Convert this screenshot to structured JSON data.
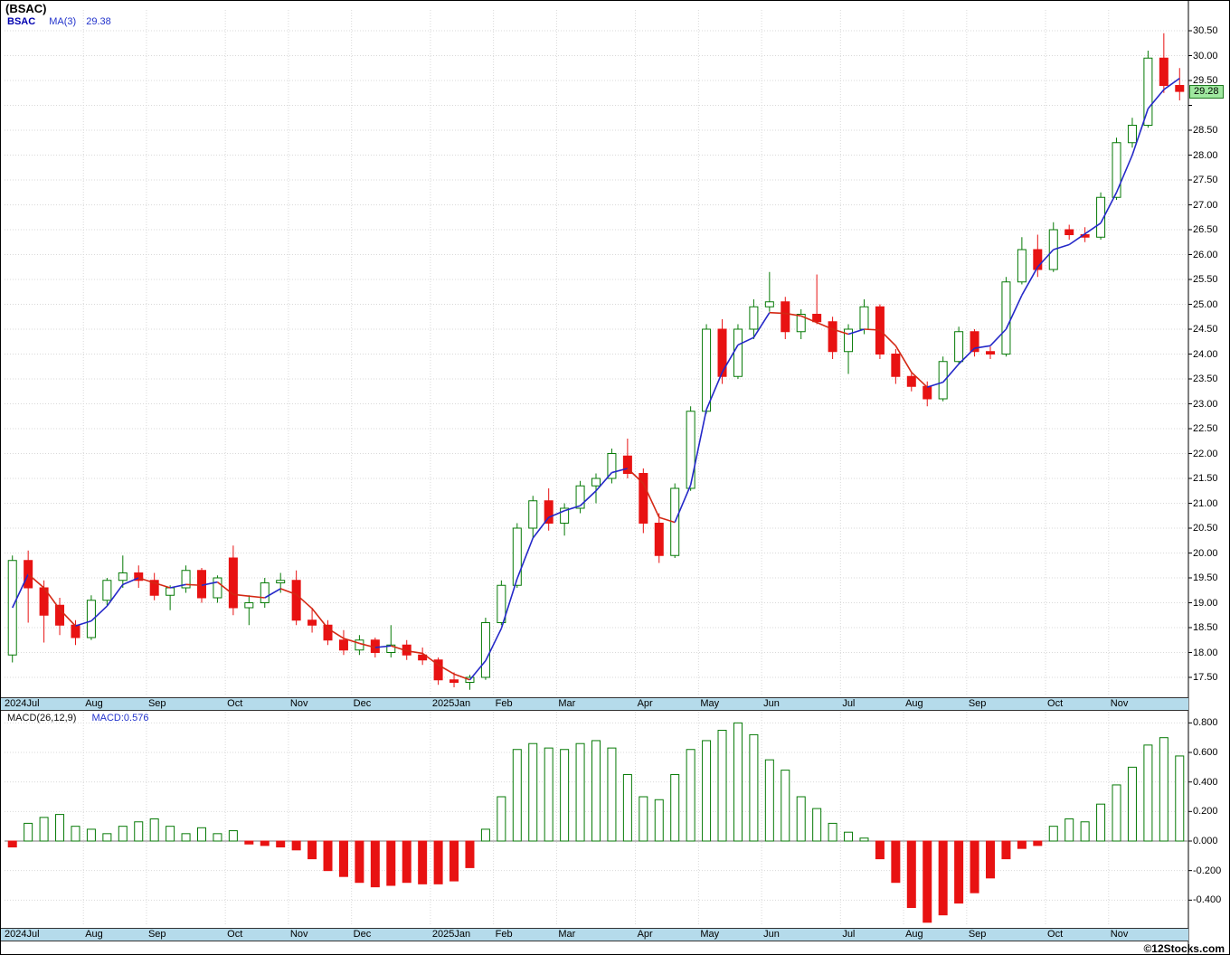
{
  "title": "(BSAC)",
  "legend": {
    "symbol": "BSAC",
    "ma": "MA(3)",
    "ma_value": "29.38"
  },
  "macd_legend": {
    "label": "MACD(26,12,9)",
    "value": "MACD:0.576"
  },
  "price_tag": "29.28",
  "watermark": "©12Stocks.com",
  "colors": {
    "up": "#067a06",
    "down": "#e81212",
    "ma_rising": "#2428c8",
    "ma_falling": "#d42814",
    "axis_strip": "#b5dbeb",
    "price_tag_bg": "#9fe89f",
    "grid": "#d9d9d9"
  },
  "chart_data": [
    {
      "type": "candlestick",
      "title": "BSAC weekly candlesticks with MA(3)",
      "ylabel": "Price",
      "ylim": [
        17.2,
        30.9
      ],
      "grid": true,
      "price_ticks": [
        30.5,
        30.0,
        29.5,
        28.5,
        28.0,
        27.5,
        27.0,
        26.5,
        26.0,
        25.5,
        25.0,
        24.5,
        24.0,
        23.5,
        23.0,
        22.5,
        22.0,
        21.5,
        21.0,
        20.5,
        20.0,
        19.5,
        19.0,
        18.5,
        18.0,
        17.5
      ],
      "last_close": 29.28,
      "ma_period": 3,
      "ma_last": 29.38,
      "months": [
        {
          "label": "2024Jul",
          "week": 0
        },
        {
          "label": "Aug",
          "week": 5
        },
        {
          "label": "Sep",
          "week": 9
        },
        {
          "label": "Oct",
          "week": 14
        },
        {
          "label": "Nov",
          "week": 18
        },
        {
          "label": "Dec",
          "week": 22
        },
        {
          "label": "2025Jan",
          "week": 27
        },
        {
          "label": "Feb",
          "week": 31
        },
        {
          "label": "Mar",
          "week": 35
        },
        {
          "label": "Apr",
          "week": 40
        },
        {
          "label": "May",
          "week": 44
        },
        {
          "label": "Jun",
          "week": 48
        },
        {
          "label": "Jul",
          "week": 53
        },
        {
          "label": "Aug",
          "week": 57
        },
        {
          "label": "Sep",
          "week": 61
        },
        {
          "label": "Oct",
          "week": 66
        },
        {
          "label": "Nov",
          "week": 70
        }
      ],
      "ohlc": [
        [
          17.95,
          19.95,
          17.8,
          19.85
        ],
        [
          19.85,
          20.05,
          18.6,
          19.3
        ],
        [
          19.3,
          19.45,
          18.2,
          18.75
        ],
        [
          18.95,
          19.1,
          18.35,
          18.55
        ],
        [
          18.55,
          18.65,
          18.15,
          18.3
        ],
        [
          18.3,
          19.15,
          18.25,
          19.05
        ],
        [
          19.05,
          19.5,
          18.95,
          19.45
        ],
        [
          19.45,
          19.95,
          19.3,
          19.6
        ],
        [
          19.6,
          19.75,
          19.3,
          19.45
        ],
        [
          19.45,
          19.6,
          19.05,
          19.15
        ],
        [
          19.15,
          19.35,
          18.85,
          19.3
        ],
        [
          19.3,
          19.75,
          19.2,
          19.65
        ],
        [
          19.65,
          19.7,
          19.0,
          19.1
        ],
        [
          19.1,
          19.55,
          19.0,
          19.5
        ],
        [
          19.9,
          20.15,
          18.75,
          18.9
        ],
        [
          18.9,
          19.15,
          18.55,
          19.0
        ],
        [
          19.0,
          19.5,
          18.9,
          19.4
        ],
        [
          19.4,
          19.6,
          19.2,
          19.45
        ],
        [
          19.45,
          19.65,
          18.55,
          18.65
        ],
        [
          18.65,
          18.9,
          18.4,
          18.55
        ],
        [
          18.55,
          18.65,
          18.15,
          18.25
        ],
        [
          18.25,
          18.45,
          17.95,
          18.05
        ],
        [
          18.05,
          18.35,
          17.95,
          18.25
        ],
        [
          18.25,
          18.3,
          17.9,
          18.0
        ],
        [
          18.0,
          18.55,
          17.9,
          18.15
        ],
        [
          18.15,
          18.25,
          17.85,
          17.95
        ],
        [
          17.95,
          18.1,
          17.75,
          17.85
        ],
        [
          17.85,
          17.9,
          17.35,
          17.45
        ],
        [
          17.45,
          17.6,
          17.3,
          17.4
        ],
        [
          17.4,
          17.55,
          17.25,
          17.5
        ],
        [
          17.5,
          18.7,
          17.45,
          18.6
        ],
        [
          18.6,
          19.45,
          18.55,
          19.35
        ],
        [
          19.35,
          20.6,
          19.3,
          20.5
        ],
        [
          20.5,
          21.15,
          20.3,
          21.05
        ],
        [
          21.05,
          21.3,
          20.45,
          20.6
        ],
        [
          20.6,
          21.0,
          20.35,
          20.9
        ],
        [
          20.9,
          21.45,
          20.8,
          21.35
        ],
        [
          21.35,
          21.6,
          21.0,
          21.5
        ],
        [
          21.5,
          22.1,
          21.4,
          22.0
        ],
        [
          21.95,
          22.3,
          21.5,
          21.6
        ],
        [
          21.6,
          21.7,
          20.4,
          20.6
        ],
        [
          20.6,
          20.8,
          19.8,
          19.95
        ],
        [
          19.95,
          21.4,
          19.9,
          21.3
        ],
        [
          21.3,
          22.95,
          21.25,
          22.85
        ],
        [
          22.85,
          24.6,
          22.8,
          24.5
        ],
        [
          24.5,
          24.7,
          23.4,
          23.55
        ],
        [
          23.55,
          24.6,
          23.5,
          24.5
        ],
        [
          24.5,
          25.1,
          24.3,
          24.95
        ],
        [
          24.95,
          25.65,
          24.85,
          25.05
        ],
        [
          25.05,
          25.15,
          24.3,
          24.45
        ],
        [
          24.45,
          24.9,
          24.3,
          24.8
        ],
        [
          24.8,
          25.6,
          24.6,
          24.65
        ],
        [
          24.65,
          24.75,
          23.9,
          24.05
        ],
        [
          24.05,
          24.6,
          23.6,
          24.5
        ],
        [
          24.5,
          25.1,
          24.4,
          24.95
        ],
        [
          24.95,
          25.0,
          23.9,
          24.0
        ],
        [
          24.0,
          24.1,
          23.4,
          23.55
        ],
        [
          23.55,
          23.65,
          23.25,
          23.35
        ],
        [
          23.35,
          23.45,
          22.95,
          23.1
        ],
        [
          23.1,
          23.95,
          23.05,
          23.85
        ],
        [
          23.85,
          24.55,
          23.8,
          24.45
        ],
        [
          24.45,
          24.5,
          23.95,
          24.05
        ],
        [
          24.05,
          24.15,
          23.9,
          24.0
        ],
        [
          24.0,
          25.55,
          23.95,
          25.45
        ],
        [
          25.45,
          26.35,
          25.4,
          26.1
        ],
        [
          26.1,
          26.4,
          25.55,
          25.7
        ],
        [
          25.7,
          26.65,
          25.65,
          26.5
        ],
        [
          26.5,
          26.6,
          26.3,
          26.4
        ],
        [
          26.4,
          26.55,
          26.25,
          26.35
        ],
        [
          26.35,
          27.25,
          26.3,
          27.15
        ],
        [
          27.15,
          28.35,
          27.1,
          28.25
        ],
        [
          28.25,
          28.75,
          28.15,
          28.6
        ],
        [
          28.6,
          30.1,
          28.55,
          29.95
        ],
        [
          29.95,
          30.45,
          29.25,
          29.4
        ],
        [
          29.4,
          29.75,
          29.1,
          29.28
        ]
      ]
    },
    {
      "type": "bar",
      "title": "MACD(26,12,9) histogram",
      "ylim": [
        -0.57,
        0.87
      ],
      "grid": true,
      "yticks": [
        0.8,
        0.6,
        0.4,
        0.2,
        0.0,
        -0.2,
        -0.4
      ],
      "last_value": 0.576,
      "values": [
        -0.04,
        0.12,
        0.16,
        0.18,
        0.1,
        0.08,
        0.05,
        0.1,
        0.13,
        0.15,
        0.1,
        0.05,
        0.09,
        0.05,
        0.07,
        -0.02,
        -0.03,
        -0.04,
        -0.06,
        -0.12,
        -0.2,
        -0.24,
        -0.28,
        -0.31,
        -0.3,
        -0.28,
        -0.29,
        -0.29,
        -0.27,
        -0.18,
        0.08,
        0.3,
        0.62,
        0.66,
        0.63,
        0.62,
        0.66,
        0.68,
        0.63,
        0.45,
        0.3,
        0.28,
        0.45,
        0.62,
        0.68,
        0.75,
        0.8,
        0.72,
        0.55,
        0.48,
        0.3,
        0.22,
        0.12,
        0.06,
        0.02,
        -0.12,
        -0.28,
        -0.45,
        -0.55,
        -0.5,
        -0.42,
        -0.35,
        -0.25,
        -0.12,
        -0.05,
        -0.03,
        0.1,
        0.15,
        0.13,
        0.25,
        0.38,
        0.5,
        0.65,
        0.7,
        0.576
      ]
    }
  ]
}
